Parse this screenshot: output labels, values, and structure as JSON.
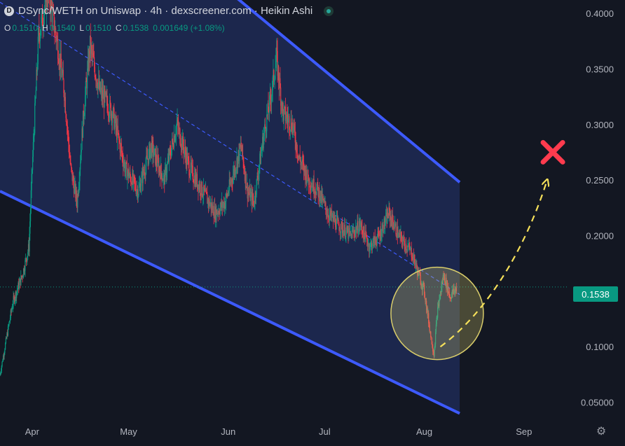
{
  "header": {
    "title": "DSync/WETH on Uniswap · 4h · dexscreener.com · Heikin Ashi",
    "logo_letter": "D"
  },
  "ohlc": {
    "o_label": "O",
    "o": "0.1510",
    "h_label": "H",
    "h": "0.1540",
    "l_label": "L",
    "l": "0.1510",
    "c_label": "C",
    "c": "0.1538",
    "change": "0.001649 (+1.08%)"
  },
  "last_price_label": "0.1538",
  "colors": {
    "background": "#131722",
    "up": "#089981",
    "down": "#f23645",
    "channel_line": "#3d5afe",
    "channel_fill": "#1e2a55",
    "circle": "#d8cc6a",
    "arrow": "#f5e05a",
    "cross": "#ff3b4e",
    "axis_text": "#b2b5be"
  },
  "chart_data": {
    "type": "candlestick",
    "style": "Heikin Ashi",
    "interval": "4h",
    "y_scale": "linear",
    "ylim": [
      0.034,
      0.412
    ],
    "x_range": [
      "2024-03-22",
      "2024-09-15"
    ],
    "grid": false,
    "y_tick_labels": [
      "0.4000",
      "0.3500",
      "0.3000",
      "0.2500",
      "0.2000",
      "0.1500",
      "0.1000",
      "0.05000"
    ],
    "x_tick_labels": [
      "Apr",
      "May",
      "Jun",
      "Jul",
      "Aug",
      "Sep"
    ],
    "last_price": 0.1538,
    "series_path": [
      [
        "2024-03-22",
        0.075
      ],
      [
        "2024-03-26",
        0.14
      ],
      [
        "2024-03-29",
        0.165
      ],
      [
        "2024-03-31",
        0.19
      ],
      [
        "2024-04-01",
        0.26
      ],
      [
        "2024-04-03",
        0.38
      ],
      [
        "2024-04-06",
        0.42
      ],
      [
        "2024-04-09",
        0.37
      ],
      [
        "2024-04-11",
        0.33
      ],
      [
        "2024-04-13",
        0.26
      ],
      [
        "2024-04-15",
        0.23
      ],
      [
        "2024-04-17",
        0.31
      ],
      [
        "2024-04-19",
        0.37
      ],
      [
        "2024-04-22",
        0.33
      ],
      [
        "2024-04-26",
        0.31
      ],
      [
        "2024-04-30",
        0.26
      ],
      [
        "2024-05-04",
        0.24
      ],
      [
        "2024-05-08",
        0.28
      ],
      [
        "2024-05-12",
        0.25
      ],
      [
        "2024-05-16",
        0.3
      ],
      [
        "2024-05-20",
        0.26
      ],
      [
        "2024-05-24",
        0.24
      ],
      [
        "2024-05-28",
        0.22
      ],
      [
        "2024-05-31",
        0.23
      ],
      [
        "2024-06-03",
        0.26
      ],
      [
        "2024-06-05",
        0.28
      ],
      [
        "2024-06-07",
        0.24
      ],
      [
        "2024-06-09",
        0.23
      ],
      [
        "2024-06-12",
        0.29
      ],
      [
        "2024-06-14",
        0.32
      ],
      [
        "2024-06-16",
        0.36
      ],
      [
        "2024-06-18",
        0.31
      ],
      [
        "2024-06-21",
        0.3
      ],
      [
        "2024-06-23",
        0.27
      ],
      [
        "2024-06-26",
        0.25
      ],
      [
        "2024-06-29",
        0.24
      ],
      [
        "2024-07-02",
        0.22
      ],
      [
        "2024-07-05",
        0.21
      ],
      [
        "2024-07-09",
        0.2
      ],
      [
        "2024-07-12",
        0.21
      ],
      [
        "2024-07-15",
        0.19
      ],
      [
        "2024-07-18",
        0.2
      ],
      [
        "2024-07-21",
        0.22
      ],
      [
        "2024-07-24",
        0.2
      ],
      [
        "2024-07-28",
        0.185
      ],
      [
        "2024-08-01",
        0.15
      ],
      [
        "2024-08-03",
        0.11
      ],
      [
        "2024-08-04",
        0.093
      ],
      [
        "2024-08-05",
        0.13
      ],
      [
        "2024-08-07",
        0.165
      ],
      [
        "2024-08-09",
        0.145
      ],
      [
        "2024-08-11",
        0.153
      ]
    ],
    "channel": {
      "upper": [
        [
          "2024-03-22",
          0.59
        ],
        [
          "2024-08-12",
          0.248
        ]
      ],
      "mid": [
        [
          "2024-03-22",
          0.41
        ],
        [
          "2024-08-12",
          0.147
        ]
      ],
      "lower": [
        [
          "2024-03-22",
          0.24
        ],
        [
          "2024-08-12",
          0.04
        ]
      ]
    },
    "annotations": {
      "circle_center": [
        "2024-08-05",
        0.13
      ],
      "projection_path": [
        [
          "2024-08-06",
          0.1
        ],
        [
          "2024-08-20",
          0.13
        ],
        [
          "2024-09-01",
          0.185
        ],
        [
          "2024-09-08",
          0.248
        ]
      ],
      "cross_at": [
        "2024-09-10",
        0.275
      ]
    }
  }
}
